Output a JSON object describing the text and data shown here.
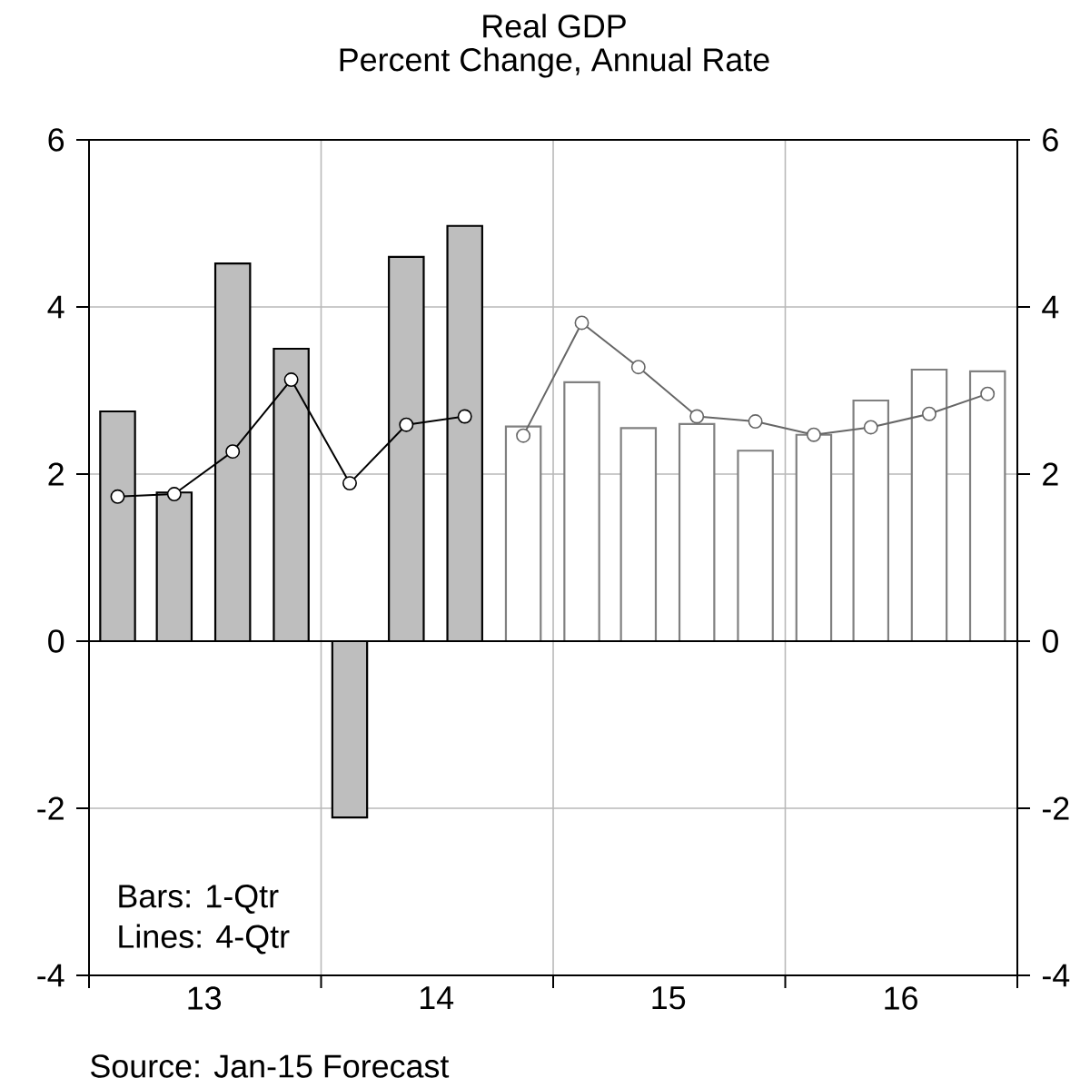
{
  "chart_data": {
    "type": "bar",
    "title": "Real GDP",
    "subtitle": "Percent Change, Annual Rate",
    "x": [
      "2013-02-15",
      "2013-05-15",
      "2013-08-15",
      "2013-11-15",
      "2014-02-15",
      "2014-05-15",
      "2014-08-15",
      "2014-11-15",
      "2015-02-15",
      "2015-05-15",
      "2015-08-15",
      "2015-11-15",
      "2016-02-15",
      "2016-05-15",
      "2016-08-15",
      "2016-11-15"
    ],
    "series": [
      {
        "color": "#bebebe",
        "values": [
          2.75,
          1.78,
          4.52,
          3.5,
          -2.11,
          4.6,
          4.97,
          null,
          null,
          null,
          null,
          null,
          null,
          null,
          null,
          null
        ]
      },
      {
        "color": "#ffffff",
        "values": [
          null,
          null,
          null,
          null,
          null,
          null,
          null,
          2.57,
          3.1,
          2.55,
          2.6,
          2.28,
          2.47,
          2.88,
          3.25,
          3.23
        ]
      },
      {
        "type": "line",
        "color": "#000000",
        "values": [
          1.73,
          1.76,
          2.27,
          3.13,
          1.89,
          2.59,
          2.69,
          null,
          null,
          null,
          null,
          null,
          null,
          null,
          null,
          null
        ]
      },
      {
        "type": "line",
        "color": "#666666",
        "values": [
          null,
          null,
          null,
          null,
          null,
          null,
          null,
          2.46,
          3.81,
          3.28,
          2.69,
          2.63,
          2.47,
          2.56,
          2.72,
          2.96
        ]
      }
    ],
    "xlim": [
      "2013-01-01",
      "2017-01-01"
    ],
    "xticks": [
      {
        "value": "2013-01-01",
        "label": null
      },
      {
        "value": "2013-07-01",
        "label": "13"
      },
      {
        "value": "2014-01-01",
        "label": null
      },
      {
        "value": "2014-07-01",
        "label": "14"
      },
      {
        "value": "2015-01-01",
        "label": null
      },
      {
        "value": "2015-07-01",
        "label": "15"
      },
      {
        "value": "2016-01-01",
        "label": null
      },
      {
        "value": "2016-07-01",
        "label": "16"
      },
      {
        "value": "2017-01-01",
        "label": null
      }
    ],
    "ylim": [
      -4,
      6
    ],
    "yticks": [
      -4,
      -2,
      0,
      2,
      4,
      6
    ],
    "y2lim": [
      -4,
      6
    ],
    "y2ticks": [
      -4,
      -2,
      0,
      2,
      4,
      6
    ],
    "grid": true,
    "marker": "circle",
    "line_style": "solid",
    "annotations": [
      "Bars:  1-Qtr",
      "Lines: 4-Qtr",
      "Source: Jan-15 Forecast"
    ]
  }
}
